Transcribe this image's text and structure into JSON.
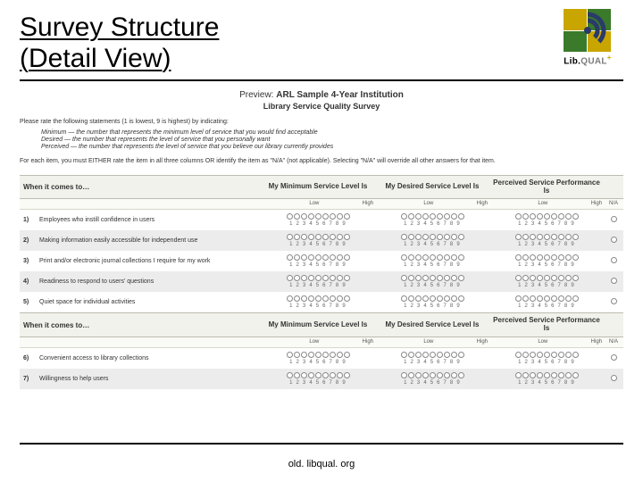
{
  "title_line1": "Survey Structure",
  "title_line2": "(Detail View)",
  "logo": {
    "brand_prefix": "Lib.",
    "brand_q": "QUAL",
    "brand_plus": "+"
  },
  "preview": {
    "label": "Preview:",
    "inst": "ARL Sample 4-Year Institution",
    "subtitle": "Library Service Quality Survey",
    "instr1": "Please rate the following statements (1 is lowest, 9 is highest) by indicating:",
    "def_min": "Minimum — the number that represents the minimum level of service that you would find acceptable",
    "def_des": "Desired — the number that represents the level of service that you personally want",
    "def_per": "Perceived — the number that represents the level of service that you believe our library currently provides",
    "instr2": "For each item, you must EITHER rate the item in all three columns OR identify the item as \"N/A\" (not applicable). Selecting \"N/A\" will override all other answers for that item.",
    "lead": "When it comes to…",
    "col1": "My Minimum Service Level Is",
    "col2": "My Desired Service Level Is",
    "col3": "Perceived Service Performance Is",
    "low": "Low",
    "high": "High",
    "na": "N/A",
    "numbers": "1 2 3 4 5 6 7 8 9",
    "rows1": [
      {
        "n": "1)",
        "t": "Employees who instill confidence in users"
      },
      {
        "n": "2)",
        "t": "Making information easily accessible for independent use"
      },
      {
        "n": "3)",
        "t": "Print and/or electronic journal collections I require for my work"
      },
      {
        "n": "4)",
        "t": "Readiness to respond to users' questions"
      },
      {
        "n": "5)",
        "t": "Quiet space for individual activities"
      }
    ],
    "rows2": [
      {
        "n": "6)",
        "t": "Convenient access to library collections"
      },
      {
        "n": "7)",
        "t": "Willingness to help users"
      }
    ]
  },
  "footer": "old. libqual. org",
  "colors": {
    "accent_gold": "#c9a500",
    "accent_green": "#3a7a2a",
    "accent_navy": "#2a3a6a",
    "rule": "#000000",
    "row_alt": "#ececec",
    "row_hdr": "#f2f2ec"
  }
}
